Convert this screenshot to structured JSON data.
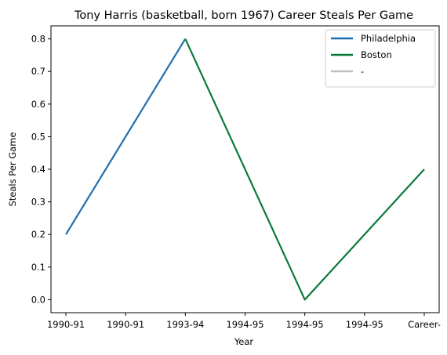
{
  "chart_data": {
    "type": "line",
    "title": "Tony Harris (basketball, born 1967) Career Steals Per Game",
    "xlabel": "Year",
    "ylabel": "Steals Per Game",
    "categories": [
      "1990-91",
      "1990-91",
      "1993-94",
      "1994-95",
      "1994-95",
      "1994-95",
      "Career-"
    ],
    "ylim": [
      -0.04,
      0.84
    ],
    "yticks": [
      "0.0",
      "0.1",
      "0.2",
      "0.3",
      "0.4",
      "0.5",
      "0.6",
      "0.7",
      "0.8"
    ],
    "grid": false,
    "legend_position": "top-right",
    "series": [
      {
        "name": "Philadelphia",
        "color": "#1f6fb0",
        "points": [
          [
            0,
            0.2
          ],
          [
            2,
            0.8
          ]
        ]
      },
      {
        "name": "Boston",
        "color": "#0a7a3a",
        "points": [
          [
            2,
            0.8
          ],
          [
            4,
            0.0
          ],
          [
            6,
            0.4
          ]
        ]
      },
      {
        "name": "-",
        "color": "#c0c0c0",
        "points": []
      }
    ]
  }
}
